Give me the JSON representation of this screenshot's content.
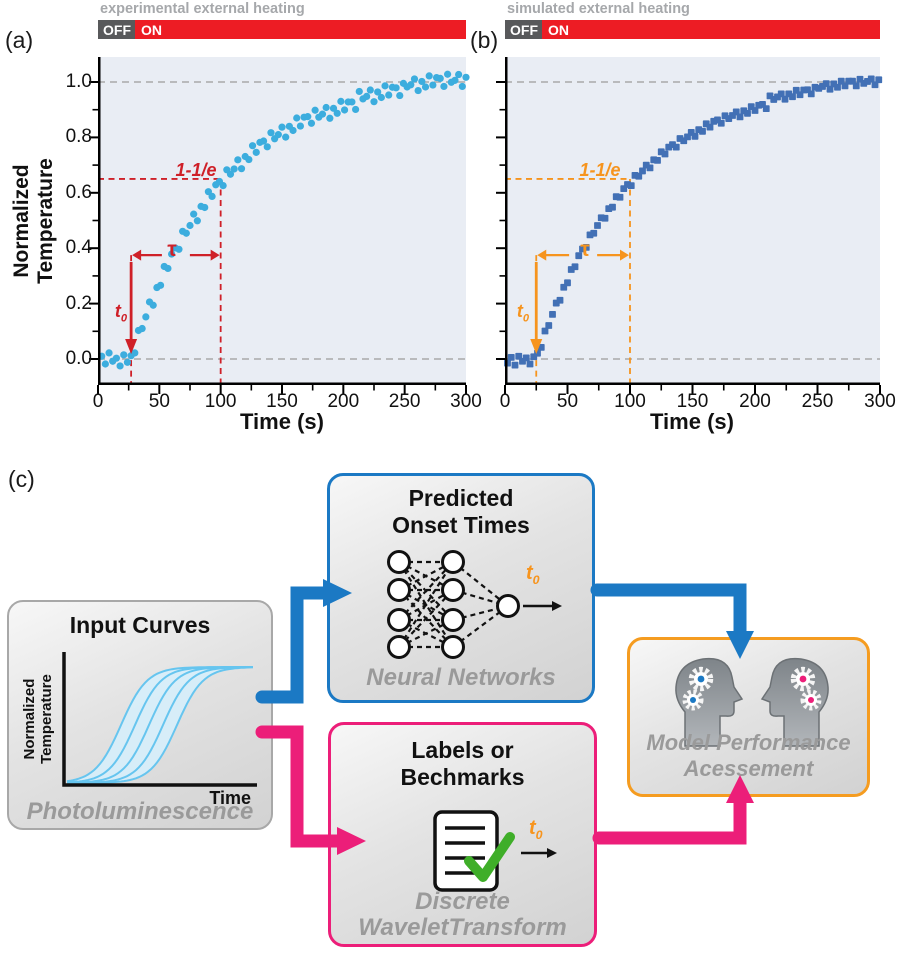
{
  "heating": {
    "experimental": {
      "title": "experimental external heating",
      "off_label": "OFF",
      "on_label": "ON"
    },
    "simulated": {
      "title": "simulated external heating",
      "off_label": "OFF",
      "on_label": "ON"
    }
  },
  "chart_data": [
    {
      "id": "a",
      "panel_label": "(a)",
      "type": "scatter",
      "marker": "circle",
      "point_color": "#3cadde",
      "bg_color": "#e9edf4",
      "xlabel": "Time (s)",
      "ylabel": "Normalized Temperature",
      "ylabel_lines": [
        "Normalized",
        "Temperature"
      ],
      "xlim": [
        0,
        300
      ],
      "ylim": [
        -0.09,
        1.08
      ],
      "xticks": [
        0,
        50,
        100,
        150,
        200,
        250,
        300
      ],
      "ytick_values": [
        0.0,
        0.2,
        0.4,
        0.6,
        0.8,
        1.0
      ],
      "ytick_labels": [
        "0.0",
        "0.2",
        "0.4",
        "0.6",
        "0.8",
        "1.0"
      ],
      "show_ytick_labels": true,
      "ref_lines": [
        0,
        1
      ],
      "annotations": {
        "color": "#cf2028",
        "label_1e": "1-1/e",
        "label_tau": "τ",
        "label_t0": "t",
        "label_t0_sub": "0",
        "t0_x": 27,
        "tau_end_x": 100,
        "level": 0.65,
        "arrow_y": 0.375
      },
      "points": [
        [
          3,
          0.01
        ],
        [
          6,
          -0.018
        ],
        [
          9,
          0.022
        ],
        [
          12,
          -0.008
        ],
        [
          15,
          0.003
        ],
        [
          18,
          -0.025
        ],
        [
          21,
          0.015
        ],
        [
          24,
          -0.012
        ],
        [
          27,
          0.012
        ],
        [
          30,
          0.022
        ],
        [
          33,
          0.103
        ],
        [
          36,
          0.11
        ],
        [
          39,
          0.152
        ],
        [
          42,
          0.206
        ],
        [
          45,
          0.194
        ],
        [
          48,
          0.258
        ],
        [
          51,
          0.266
        ],
        [
          54,
          0.334
        ],
        [
          57,
          0.327
        ],
        [
          60,
          0.379
        ],
        [
          63,
          0.401
        ],
        [
          66,
          0.396
        ],
        [
          69,
          0.461
        ],
        [
          72,
          0.454
        ],
        [
          75,
          0.482
        ],
        [
          78,
          0.523
        ],
        [
          81,
          0.499
        ],
        [
          84,
          0.551
        ],
        [
          87,
          0.547
        ],
        [
          90,
          0.604
        ],
        [
          93,
          0.587
        ],
        [
          96,
          0.629
        ],
        [
          99,
          0.641
        ],
        [
          102,
          0.626
        ],
        [
          105,
          0.683
        ],
        [
          108,
          0.667
        ],
        [
          111,
          0.686
        ],
        [
          114,
          0.719
        ],
        [
          117,
          0.687
        ],
        [
          120,
          0.731
        ],
        [
          123,
          0.72
        ],
        [
          126,
          0.77
        ],
        [
          129,
          0.746
        ],
        [
          132,
          0.782
        ],
        [
          135,
          0.787
        ],
        [
          138,
          0.766
        ],
        [
          141,
          0.817
        ],
        [
          144,
          0.795
        ],
        [
          147,
          0.81
        ],
        [
          150,
          0.837
        ],
        [
          153,
          0.801
        ],
        [
          156,
          0.84
        ],
        [
          159,
          0.825
        ],
        [
          162,
          0.87
        ],
        [
          165,
          0.841
        ],
        [
          168,
          0.873
        ],
        [
          171,
          0.875
        ],
        [
          174,
          0.851
        ],
        [
          177,
          0.898
        ],
        [
          180,
          0.873
        ],
        [
          183,
          0.884
        ],
        [
          186,
          0.908
        ],
        [
          189,
          0.869
        ],
        [
          192,
          0.905
        ],
        [
          195,
          0.887
        ],
        [
          198,
          0.93
        ],
        [
          201,
          0.899
        ],
        [
          204,
          0.928
        ],
        [
          207,
          0.928
        ],
        [
          210,
          0.901
        ],
        [
          213,
          0.966
        ],
        [
          216,
          0.939
        ],
        [
          219,
          0.948
        ],
        [
          222,
          0.971
        ],
        [
          225,
          0.929
        ],
        [
          228,
          0.964
        ],
        [
          231,
          0.944
        ],
        [
          234,
          0.986
        ],
        [
          237,
          0.953
        ],
        [
          240,
          0.981
        ],
        [
          243,
          0.979
        ],
        [
          246,
          0.951
        ],
        [
          249,
          0.995
        ],
        [
          252,
          0.982
        ],
        [
          255,
          0.99
        ],
        [
          258,
          1.011
        ],
        [
          261,
          0.969
        ],
        [
          264,
          1.002
        ],
        [
          267,
          0.982
        ],
        [
          270,
          1.022
        ],
        [
          273,
          0.989
        ],
        [
          276,
          1.016
        ],
        [
          279,
          1.013
        ],
        [
          282,
          0.984
        ],
        [
          285,
          1.028
        ],
        [
          288,
          0.999
        ],
        [
          291,
          1.006
        ],
        [
          294,
          1.027
        ],
        [
          297,
          0.984
        ],
        [
          300,
          1.017
        ]
      ]
    },
    {
      "id": "b",
      "panel_label": "(b)",
      "type": "scatter",
      "marker": "square",
      "point_color": "#4270b5",
      "bg_color": "#e9edf4",
      "xlabel": "Time (s)",
      "ylabel": "",
      "xlim": [
        0,
        300
      ],
      "ylim": [
        -0.09,
        1.08
      ],
      "xticks": [
        0,
        50,
        100,
        150,
        200,
        250,
        300
      ],
      "ytick_values": [
        0.0,
        0.2,
        0.4,
        0.6,
        0.8,
        1.0
      ],
      "ytick_labels": [],
      "show_ytick_labels": false,
      "ref_lines": [
        0,
        1
      ],
      "annotations": {
        "color": "#f6941e",
        "label_1e": "1-1/e",
        "label_tau": "τ",
        "label_t0": "t",
        "label_t0_sub": "0",
        "t0_x": 25,
        "tau_end_x": 100,
        "level": 0.65,
        "arrow_y": 0.375
      },
      "points": [
        [
          2,
          -0.015
        ],
        [
          5,
          0.006
        ],
        [
          8,
          -0.022
        ],
        [
          11,
          0.01
        ],
        [
          14,
          -0.008
        ],
        [
          17,
          0.004
        ],
        [
          20,
          -0.018
        ],
        [
          23,
          0.008
        ],
        [
          26,
          0.021
        ],
        [
          29,
          0.042
        ],
        [
          32,
          0.101
        ],
        [
          35,
          0.121
        ],
        [
          38,
          0.161
        ],
        [
          41,
          0.202
        ],
        [
          44,
          0.212
        ],
        [
          47,
          0.259
        ],
        [
          50,
          0.275
        ],
        [
          53,
          0.323
        ],
        [
          56,
          0.333
        ],
        [
          59,
          0.373
        ],
        [
          62,
          0.397
        ],
        [
          65,
          0.403
        ],
        [
          68,
          0.448
        ],
        [
          71,
          0.454
        ],
        [
          74,
          0.482
        ],
        [
          77,
          0.51
        ],
        [
          80,
          0.508
        ],
        [
          83,
          0.543
        ],
        [
          86,
          0.548
        ],
        [
          89,
          0.586
        ],
        [
          92,
          0.584
        ],
        [
          95,
          0.615
        ],
        [
          98,
          0.63
        ],
        [
          101,
          0.626
        ],
        [
          104,
          0.663
        ],
        [
          107,
          0.66
        ],
        [
          110,
          0.679
        ],
        [
          113,
          0.7
        ],
        [
          116,
          0.69
        ],
        [
          119,
          0.719
        ],
        [
          122,
          0.717
        ],
        [
          125,
          0.748
        ],
        [
          128,
          0.74
        ],
        [
          131,
          0.765
        ],
        [
          134,
          0.774
        ],
        [
          137,
          0.765
        ],
        [
          140,
          0.796
        ],
        [
          143,
          0.788
        ],
        [
          146,
          0.802
        ],
        [
          149,
          0.818
        ],
        [
          152,
          0.804
        ],
        [
          155,
          0.828
        ],
        [
          158,
          0.822
        ],
        [
          161,
          0.849
        ],
        [
          164,
          0.837
        ],
        [
          167,
          0.858
        ],
        [
          170,
          0.863
        ],
        [
          173,
          0.851
        ],
        [
          176,
          0.878
        ],
        [
          179,
          0.868
        ],
        [
          182,
          0.879
        ],
        [
          185,
          0.892
        ],
        [
          188,
          0.874
        ],
        [
          191,
          0.896
        ],
        [
          194,
          0.887
        ],
        [
          197,
          0.911
        ],
        [
          200,
          0.897
        ],
        [
          203,
          0.916
        ],
        [
          206,
          0.919
        ],
        [
          209,
          0.904
        ],
        [
          212,
          0.95
        ],
        [
          215,
          0.937
        ],
        [
          218,
          0.946
        ],
        [
          221,
          0.957
        ],
        [
          224,
          0.938
        ],
        [
          227,
          0.957
        ],
        [
          230,
          0.947
        ],
        [
          233,
          0.97
        ],
        [
          236,
          0.954
        ],
        [
          239,
          0.971
        ],
        [
          242,
          0.972
        ],
        [
          245,
          0.957
        ],
        [
          248,
          0.981
        ],
        [
          251,
          0.977
        ],
        [
          254,
          0.984
        ],
        [
          257,
          0.994
        ],
        [
          260,
          0.974
        ],
        [
          263,
          0.993
        ],
        [
          266,
          0.981
        ],
        [
          269,
          1.003
        ],
        [
          272,
          0.986
        ],
        [
          275,
          1.003
        ],
        [
          278,
          1.003
        ],
        [
          281,
          0.986
        ],
        [
          284,
          1.01
        ],
        [
          287,
          0.995
        ],
        [
          290,
          1.002
        ],
        [
          293,
          1.011
        ],
        [
          296,
          0.99
        ],
        [
          299,
          1.008
        ]
      ]
    }
  ],
  "diagram": {
    "panel_label": "(c)",
    "colors": {
      "blue": "#1b79c4",
      "pink": "#ec1e79",
      "orange_border": "#f59c20",
      "t0_color": "#f7941d",
      "gray_text": "#9a9a9a",
      "check_green": "#3fae29"
    },
    "input_box": {
      "title": "Input Curves",
      "ylabel_lines": [
        "Normalized",
        "Temperature"
      ],
      "xlabel": "Time",
      "caption": "Photoluminescence"
    },
    "nn_box": {
      "title_lines": [
        "Predicted",
        "Onset Times"
      ],
      "caption": "Neural Networks",
      "t0_label": "t",
      "t0_sub": "0"
    },
    "labels_box": {
      "title_lines": [
        "Labels or",
        "Bechmarks"
      ],
      "caption_lines": [
        "Discrete",
        "WaveletTransform"
      ],
      "t0_label": "t",
      "t0_sub": "0"
    },
    "assessment_box": {
      "caption_lines": [
        "Model Performance",
        "Acessement"
      ]
    }
  }
}
